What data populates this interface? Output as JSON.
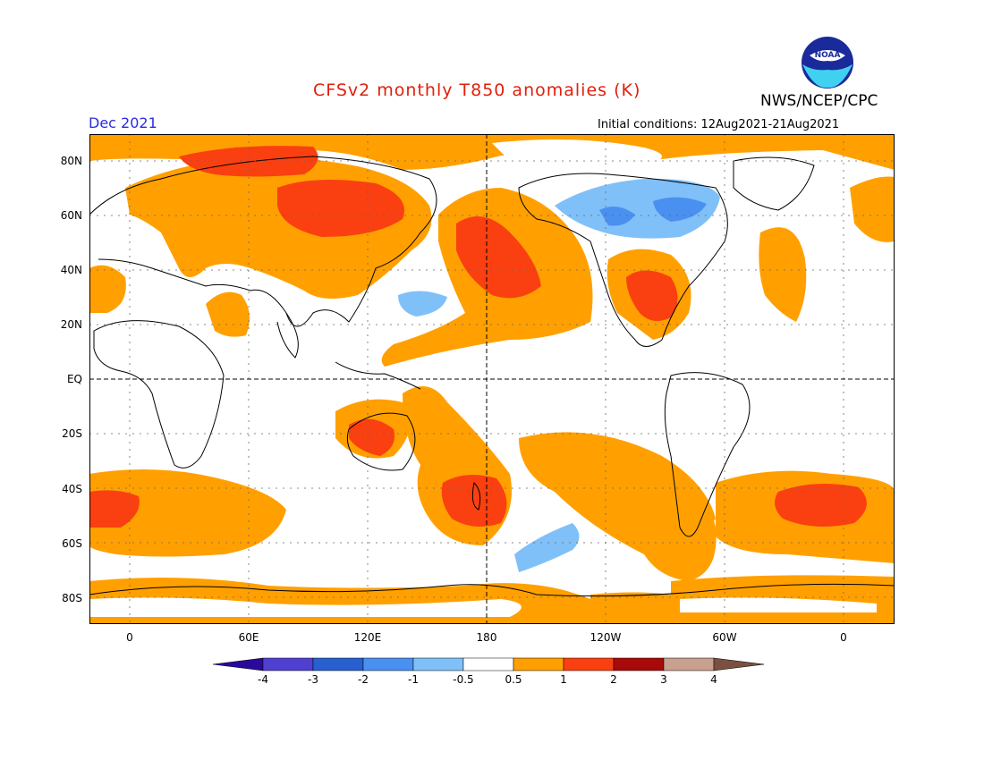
{
  "header": {
    "title": "CFSv2 monthly T850 anomalies (K)",
    "valid_month": "Dec 2021",
    "initial_conditions": "Initial conditions: 12Aug2021-21Aug2021",
    "agency": "NWS/NCEP/CPC",
    "logo_text": "NOAA"
  },
  "colors": {
    "title": "#e0200c",
    "valid_month": "#2c2ce0",
    "land_outline": "#000000",
    "ocean": "#ffffff"
  },
  "axes": {
    "lat_labels": [
      "80N",
      "60N",
      "40N",
      "20N",
      "EQ",
      "20S",
      "40S",
      "60S",
      "80S"
    ],
    "lon_labels": [
      "0",
      "60E",
      "120E",
      "180",
      "120W",
      "60W",
      "0"
    ]
  },
  "legend": {
    "labels": [
      "-4",
      "-3",
      "-2",
      "-1",
      "-0.5",
      "0.5",
      "1",
      "2",
      "3",
      "4"
    ],
    "colors": [
      "#2a0a9a",
      "#5040d0",
      "#2860d0",
      "#4a90f0",
      "#80c0f8",
      "#ffffff",
      "#ffa000",
      "#fa4010",
      "#a80a0a",
      "#c8a090",
      "#7a5040"
    ]
  }
}
